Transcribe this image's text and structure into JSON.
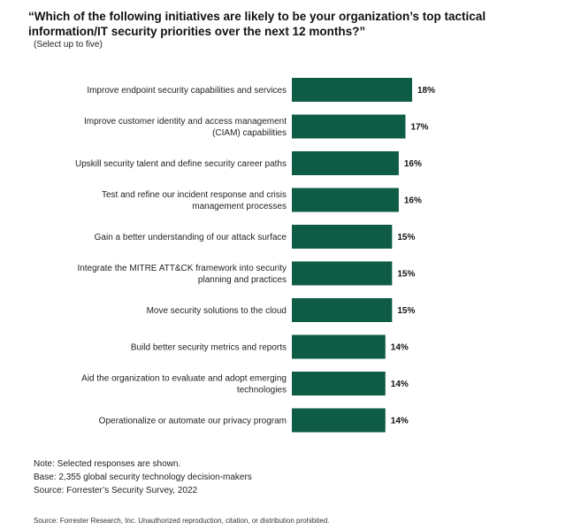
{
  "header": {
    "title": "“Which of the following initiatives are likely to be your organization’s top tactical information/IT security priorities over the next 12 months?”",
    "subtitle": "(Select up to five)"
  },
  "chart_data": {
    "type": "bar",
    "orientation": "horizontal",
    "bar_color": "#0e5c45",
    "categories": [
      "Improve endpoint security capabilities and services",
      "Improve customer identity and access management (CIAM) capabilities",
      "Upskill security talent and define security career paths",
      "Test and refine our incident response and crisis management processes",
      "Gain a better understanding of our attack surface",
      "Integrate the MITRE ATT&CK framework into security planning and practices",
      "Move security solutions to the cloud",
      "Build better security metrics and reports",
      "Aid the organization to evaluate and adopt emerging technologies",
      "Operationalize or automate our privacy program"
    ],
    "category_lines": [
      [
        "Improve endpoint security capabilities and services"
      ],
      [
        "Improve customer identity and access management",
        "(CIAM) capabilities"
      ],
      [
        "Upskill security talent and define security career paths"
      ],
      [
        "Test and refine our incident response and crisis",
        "management processes"
      ],
      [
        "Gain a better understanding of our attack surface"
      ],
      [
        "Integrate the MITRE ATT&CK framework into security",
        "planning and practices"
      ],
      [
        "Move security solutions to the cloud"
      ],
      [
        "Build better security metrics and reports"
      ],
      [
        "Aid the organization to evaluate and adopt emerging",
        "technologies"
      ],
      [
        "Operationalize or automate our privacy program"
      ]
    ],
    "values": [
      18,
      17,
      16,
      16,
      15,
      15,
      15,
      14,
      14,
      14
    ],
    "value_labels": [
      "18%",
      "17%",
      "16%",
      "16%",
      "15%",
      "15%",
      "15%",
      "14%",
      "14%",
      "14%"
    ],
    "unit": "%",
    "xlim": [
      0,
      18
    ]
  },
  "notes": {
    "note": "Note: Selected responses are shown.",
    "base": "Base: 2,355 global security technology decision-makers",
    "source": "Source: Forrester’s Security Survey, 2022"
  },
  "footer": {
    "copyright": "Source: Forrester Research, Inc. Unauthorized reproduction, citation, or distribution prohibited."
  }
}
